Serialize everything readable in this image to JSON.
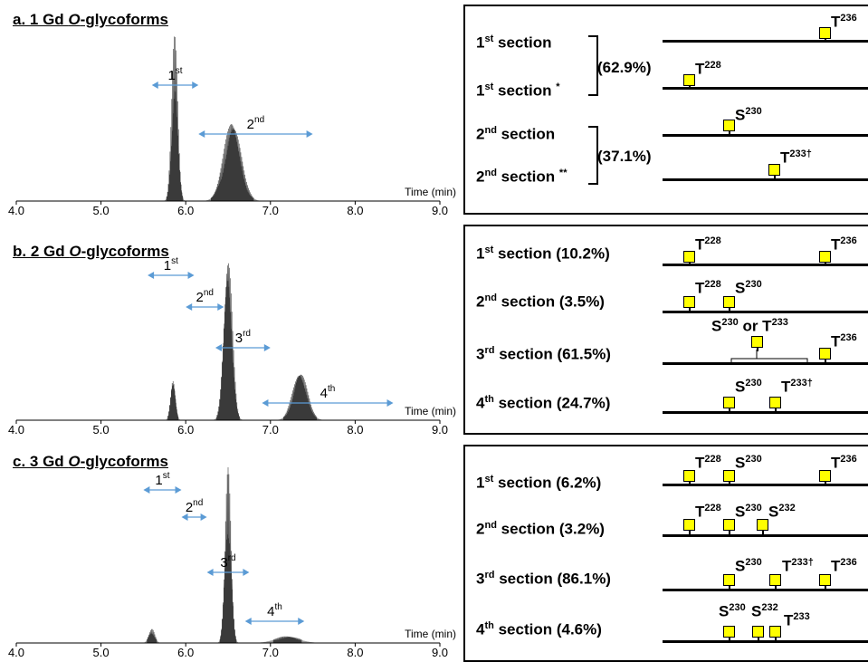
{
  "panels": [
    {
      "prefix": "a. 1 Gd ",
      "em": "O",
      "suffix": "-glycoforms"
    },
    {
      "prefix": "b. 2 Gd ",
      "em": "O",
      "suffix": "-glycoforms"
    },
    {
      "prefix": "c. 3 Gd ",
      "em": "O",
      "suffix": "-glycoforms"
    }
  ],
  "chart_data": [
    {
      "type": "area",
      "title": "a. 1 Gd O-glycoforms",
      "xlabel": "Time (min)",
      "xlim": [
        4.0,
        9.0
      ],
      "x_ticks": [
        "4.0",
        "5.0",
        "6.0",
        "7.0",
        "8.0",
        "9.0"
      ],
      "peaks": [
        {
          "x": 5.87,
          "h": 1.0,
          "w": 0.05
        },
        {
          "x": 6.55,
          "h": 0.5,
          "w": 0.14
        }
      ],
      "ranges": [
        {
          "label": "1st",
          "from": 5.6,
          "to": 6.15
        },
        {
          "label": "2nd",
          "from": 6.15,
          "to": 7.5
        }
      ]
    },
    {
      "type": "area",
      "title": "b. 2 Gd O-glycoforms",
      "xlabel": "Time (min)",
      "xlim": [
        4.0,
        9.0
      ],
      "x_ticks": [
        "4.0",
        "5.0",
        "6.0",
        "7.0",
        "8.0",
        "9.0"
      ],
      "peaks": [
        {
          "x": 5.85,
          "h": 0.25,
          "w": 0.04
        },
        {
          "x": 6.5,
          "h": 1.0,
          "w": 0.07
        },
        {
          "x": 7.35,
          "h": 0.3,
          "w": 0.12
        }
      ],
      "ranges": [
        {
          "label": "1st",
          "from": 5.55,
          "to": 6.1
        },
        {
          "label": "2nd",
          "from": 6.0,
          "to": 6.45
        },
        {
          "label": "3rd",
          "from": 6.35,
          "to": 7.0
        },
        {
          "label": "4th",
          "from": 6.9,
          "to": 8.45
        }
      ]
    },
    {
      "type": "area",
      "title": "c. 3 Gd O-glycoforms",
      "xlabel": "Time (min)",
      "xlim": [
        4.0,
        9.0
      ],
      "x_ticks": [
        "4.0",
        "5.0",
        "6.0",
        "7.0",
        "8.0",
        "9.0"
      ],
      "peaks": [
        {
          "x": 5.6,
          "h": 0.08,
          "w": 0.05
        },
        {
          "x": 6.5,
          "h": 1.0,
          "w": 0.05
        },
        {
          "x": 7.2,
          "h": 0.04,
          "w": 0.2
        }
      ],
      "ranges": [
        {
          "label": "1st",
          "from": 5.5,
          "to": 5.95
        },
        {
          "label": "2nd",
          "from": 5.95,
          "to": 6.25
        },
        {
          "label": "3rd",
          "from": 6.25,
          "to": 6.75
        },
        {
          "label": "4th",
          "from": 6.7,
          "to": 7.4
        }
      ]
    }
  ],
  "schemes": {
    "a": {
      "bracket1": "(62.9%)",
      "bracket2": "(37.1%)",
      "rows": [
        {
          "text": "section",
          "sup": "st",
          "num": "1",
          "mark": "",
          "sites": [
            {
              "res": "T",
              "pos": "236",
              "dag": ""
            }
          ]
        },
        {
          "text": "section",
          "sup": "st",
          "num": "1",
          "mark": "*",
          "sites": [
            {
              "res": "T",
              "pos": "228",
              "dag": ""
            }
          ]
        },
        {
          "text": "section",
          "sup": "nd",
          "num": "2",
          "mark": "",
          "sites": [
            {
              "res": "S",
              "pos": "230",
              "dag": ""
            }
          ]
        },
        {
          "text": "section",
          "sup": "nd",
          "num": "2",
          "mark": "**",
          "sites": [
            {
              "res": "T",
              "pos": "233",
              "dag": "†"
            }
          ]
        }
      ]
    },
    "b": {
      "rows": [
        {
          "num": "1",
          "sup": "st",
          "text": "section (10.2%)",
          "sites": [
            {
              "res": "T",
              "pos": "228"
            },
            {
              "res": "T",
              "pos": "236"
            }
          ]
        },
        {
          "num": "2",
          "sup": "nd",
          "text": "section (3.5%)",
          "sites": [
            {
              "res": "T",
              "pos": "228"
            },
            {
              "res": "S",
              "pos": "230"
            }
          ]
        },
        {
          "num": "3",
          "sup": "rd",
          "text": "section (61.5%)",
          "sites": [
            {
              "res": "S",
              "pos": "230"
            },
            {
              "res": "T",
              "pos": "233"
            },
            {
              "res": "T",
              "pos": "236"
            }
          ],
          "or": "or"
        },
        {
          "num": "4",
          "sup": "th",
          "text": "section (24.7%)",
          "sites": [
            {
              "res": "S",
              "pos": "230"
            },
            {
              "res": "T",
              "pos": "233",
              "dag": "†"
            }
          ]
        }
      ]
    },
    "c": {
      "rows": [
        {
          "num": "1",
          "sup": "st",
          "text": "section (6.2%)",
          "sites": [
            {
              "res": "T",
              "pos": "228"
            },
            {
              "res": "S",
              "pos": "230"
            },
            {
              "res": "T",
              "pos": "236"
            }
          ]
        },
        {
          "num": "2",
          "sup": "nd",
          "text": "section (3.2%)",
          "sites": [
            {
              "res": "T",
              "pos": "228"
            },
            {
              "res": "S",
              "pos": "230"
            },
            {
              "res": "S",
              "pos": "232"
            }
          ]
        },
        {
          "num": "3",
          "sup": "rd",
          "text": "section (86.1%)",
          "sites": [
            {
              "res": "S",
              "pos": "230"
            },
            {
              "res": "T",
              "pos": "233",
              "dag": "†"
            },
            {
              "res": "T",
              "pos": "236"
            }
          ]
        },
        {
          "num": "4",
          "sup": "th",
          "text": "section (4.6%)",
          "sites": [
            {
              "res": "S",
              "pos": "230"
            },
            {
              "res": "S",
              "pos": "232"
            },
            {
              "res": "T",
              "pos": "233"
            }
          ]
        }
      ]
    }
  }
}
